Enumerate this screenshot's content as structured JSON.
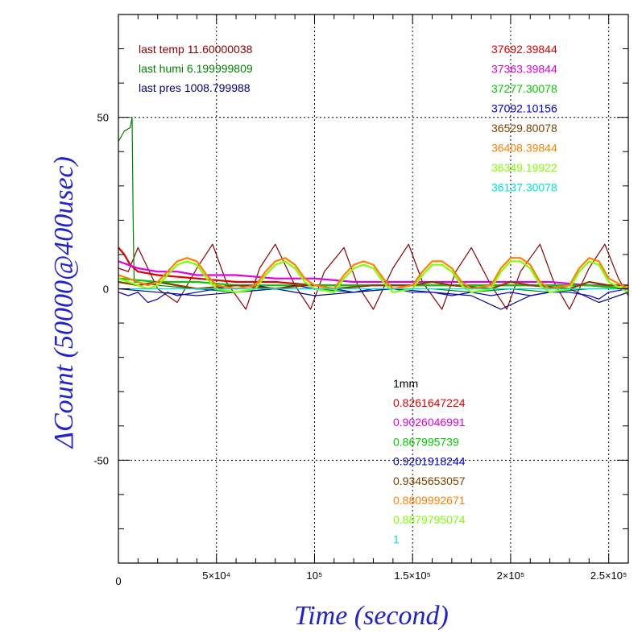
{
  "chart_data": {
    "type": "line",
    "xlabel": "Time (second)",
    "ylabel": "ΔCount (50000@400usec)",
    "axis_label_color": "#2222cc",
    "xlim": [
      0,
      260000
    ],
    "ylim": [
      -80,
      80
    ],
    "x_ticks": [
      {
        "value": 50000,
        "label": "5×10⁴"
      },
      {
        "value": 100000,
        "label": "10⁵"
      },
      {
        "value": 150000,
        "label": "1.5×10⁵"
      },
      {
        "value": 200000,
        "label": "2×10⁵"
      },
      {
        "value": 250000,
        "label": "2.5×10⁵"
      }
    ],
    "x_origin_label": "0",
    "y_ticks": [
      {
        "value": 50,
        "label": "50"
      },
      {
        "value": 0,
        "label": "0"
      },
      {
        "value": -50,
        "label": "-50"
      }
    ],
    "grid": true,
    "env_info": [
      {
        "text": "last temp 11.60000038",
        "color": "#8b0000"
      },
      {
        "text": "last humi 6.199999809",
        "color": "#008000"
      },
      {
        "text": "last pres 1008.799988",
        "color": "#000080"
      }
    ],
    "legend_counts": [
      {
        "text": "37692.39844",
        "color": "#e00000"
      },
      {
        "text": "37363.39844",
        "color": "#e000e0"
      },
      {
        "text": "37277.30078",
        "color": "#00cc00"
      },
      {
        "text": "37092.10156",
        "color": "#0000cc"
      },
      {
        "text": "36529.80078",
        "color": "#804000"
      },
      {
        "text": "36408.39844",
        "color": "#ff8000"
      },
      {
        "text": "36349.19922",
        "color": "#80ff00"
      },
      {
        "text": "36137.30078",
        "color": "#00e0e0"
      }
    ],
    "ratio_header": {
      "text": "1mm",
      "color": "#000000"
    },
    "legend_ratios": [
      {
        "text": "0.8261647224",
        "color": "#e00000"
      },
      {
        "text": "0.9026046991",
        "color": "#e000e0"
      },
      {
        "text": "0.867995739",
        "color": "#00cc00"
      },
      {
        "text": "0.9201918244",
        "color": "#0000cc"
      },
      {
        "text": "0.9345653057",
        "color": "#804000"
      },
      {
        "text": "0.8809992671",
        "color": "#ff8000"
      },
      {
        "text": "0.8879795074",
        "color": "#80ff00"
      },
      {
        "text": "1",
        "color": "#00e0e0"
      }
    ],
    "series": [
      {
        "color": "#8b0000",
        "x": [
          0,
          5000,
          10000,
          20000,
          30000,
          40000,
          48000,
          55000,
          65000,
          72000,
          80000,
          90000,
          98000,
          105000,
          115000,
          122000,
          130000,
          140000,
          148000,
          155000,
          165000,
          172000,
          180000,
          190000,
          198000,
          205000,
          215000,
          222000,
          230000,
          240000,
          248000,
          255000,
          260000
        ],
        "y": [
          6,
          5,
          12,
          0,
          -4,
          6,
          13,
          2,
          -6,
          6,
          13,
          1,
          -6,
          5,
          12,
          1,
          -6,
          6,
          13,
          2,
          -6,
          5,
          12,
          1,
          -6,
          5,
          13,
          2,
          -6,
          6,
          13,
          3,
          -2
        ]
      },
      {
        "color": "#008000",
        "x": [
          0,
          3000,
          6000,
          7000,
          7500,
          8000,
          20000,
          40000,
          60000,
          80000,
          100000,
          120000,
          140000,
          160000,
          180000,
          200000,
          220000,
          240000,
          260000
        ],
        "y": [
          43,
          46,
          47,
          50,
          20,
          2,
          1,
          0,
          -1,
          0,
          0,
          -1,
          0,
          0,
          -1,
          0,
          -1,
          0,
          0
        ]
      },
      {
        "color": "#000080",
        "x": [
          0,
          20000,
          40000,
          60000,
          80000,
          100000,
          120000,
          140000,
          160000,
          180000,
          195000,
          210000,
          230000,
          245000,
          260000
        ],
        "y": [
          0,
          -1,
          -2,
          -1,
          0,
          -2,
          -1,
          0,
          -1,
          -2,
          -6,
          -2,
          0,
          -4,
          -1
        ]
      },
      {
        "color": "#e00000",
        "x": [
          0,
          3000,
          6000,
          10000,
          20000,
          40000,
          60000,
          80000,
          100000,
          120000,
          140000,
          160000,
          180000,
          200000,
          220000,
          240000,
          260000
        ],
        "y": [
          12,
          10,
          7,
          5,
          4,
          3,
          2,
          2,
          1,
          1,
          1,
          1,
          1,
          1,
          1,
          1,
          0
        ]
      },
      {
        "color": "#e000e0",
        "x": [
          0,
          5000,
          10000,
          20000,
          30000,
          40000,
          50000,
          60000,
          80000,
          100000,
          120000,
          140000,
          160000,
          180000,
          200000,
          220000,
          240000,
          260000
        ],
        "y": [
          8,
          7,
          6,
          5,
          5,
          4,
          4,
          4,
          3,
          3,
          2,
          2,
          2,
          2,
          2,
          2,
          1,
          1
        ]
      },
      {
        "color": "#00cc00",
        "x": [
          0,
          20000,
          40000,
          60000,
          80000,
          100000,
          120000,
          140000,
          160000,
          180000,
          200000,
          220000,
          240000,
          260000
        ],
        "y": [
          3,
          2,
          2,
          1,
          1,
          1,
          1,
          1,
          1,
          1,
          1,
          1,
          1,
          0
        ]
      },
      {
        "color": "#0000cc",
        "x": [
          0,
          5000,
          10000,
          15000,
          20000,
          25000,
          30000,
          40000,
          50000,
          60000,
          70000,
          80000,
          90000,
          100000,
          110000,
          120000,
          130000,
          140000,
          150000,
          160000,
          170000,
          180000,
          190000,
          200000,
          210000,
          220000,
          230000,
          240000,
          245000,
          250000,
          260000
        ],
        "y": [
          -1,
          -2,
          -1,
          -4,
          -3,
          -1,
          -2,
          -1,
          0,
          1,
          1,
          0,
          1,
          0,
          0,
          -1,
          0,
          0,
          -1,
          -1,
          -2,
          -1,
          -2,
          -1,
          -2,
          -1,
          -1,
          -2,
          -3,
          -1,
          0
        ]
      },
      {
        "color": "#804000",
        "x": [
          0,
          10000,
          20000,
          40000,
          60000,
          80000,
          95000,
          100000,
          110000,
          130000,
          150000,
          160000,
          170000,
          190000,
          200000,
          210000,
          230000,
          240000,
          250000,
          260000
        ],
        "y": [
          2,
          1,
          2,
          0,
          1,
          0,
          1,
          1,
          0,
          1,
          1,
          2,
          1,
          0,
          2,
          1,
          0,
          2,
          1,
          1
        ]
      },
      {
        "color": "#ff8000",
        "x": [
          0,
          5000,
          10000,
          15000,
          20000,
          25000,
          30000,
          35000,
          40000,
          45000,
          50000,
          60000,
          70000,
          75000,
          80000,
          85000,
          90000,
          95000,
          100000,
          110000,
          115000,
          120000,
          125000,
          130000,
          135000,
          140000,
          150000,
          155000,
          160000,
          165000,
          170000,
          175000,
          180000,
          190000,
          195000,
          200000,
          205000,
          210000,
          215000,
          220000,
          230000,
          235000,
          240000,
          245000,
          250000,
          260000
        ],
        "y": [
          4,
          3,
          2,
          1,
          2,
          5,
          8,
          9,
          8,
          4,
          1,
          0,
          1,
          5,
          8,
          9,
          7,
          3,
          1,
          0,
          4,
          7,
          8,
          7,
          3,
          0,
          1,
          5,
          8,
          8,
          6,
          2,
          0,
          1,
          6,
          9,
          9,
          7,
          2,
          0,
          1,
          6,
          9,
          8,
          3,
          0
        ]
      },
      {
        "color": "#80ff00",
        "x": [
          0,
          5000,
          10000,
          15000,
          20000,
          25000,
          30000,
          35000,
          40000,
          45000,
          50000,
          60000,
          70000,
          75000,
          80000,
          85000,
          90000,
          95000,
          100000,
          110000,
          115000,
          120000,
          125000,
          130000,
          135000,
          140000,
          150000,
          155000,
          160000,
          165000,
          170000,
          175000,
          180000,
          190000,
          195000,
          200000,
          205000,
          210000,
          215000,
          220000,
          230000,
          235000,
          240000,
          245000,
          250000,
          260000
        ],
        "y": [
          3,
          2,
          1,
          0,
          1,
          4,
          7,
          8,
          7,
          3,
          0,
          -1,
          0,
          4,
          7,
          8,
          6,
          2,
          0,
          -1,
          3,
          6,
          7,
          6,
          2,
          -1,
          0,
          4,
          7,
          7,
          5,
          1,
          -1,
          0,
          5,
          8,
          8,
          6,
          1,
          -1,
          0,
          5,
          8,
          7,
          2,
          -1
        ]
      },
      {
        "color": "#00e0e0",
        "x": [
          0,
          260000
        ],
        "y": [
          0,
          0
        ]
      }
    ]
  }
}
